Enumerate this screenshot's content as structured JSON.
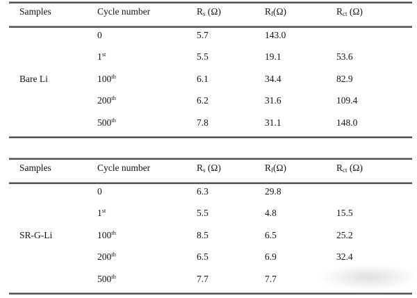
{
  "colors": {
    "background": "#ffffff",
    "rule": "#555555",
    "text": "#131313",
    "watermark": "#c8c8c8"
  },
  "tables": [
    {
      "sample": "Bare Li",
      "header": {
        "samples": "Samples",
        "cycle": "Cycle number",
        "rs": {
          "pre": "R",
          "sub": "s",
          "post": " (Ω)"
        },
        "rf": {
          "pre": "R",
          "sub": "f",
          "post": "(Ω)"
        },
        "rct": {
          "pre": "R",
          "sub": "ct",
          "post": " (Ω)"
        }
      },
      "rows": [
        {
          "cycle": {
            "base": "0",
            "sup": ""
          },
          "rs": "5.7",
          "rf": "143.0",
          "rct": ""
        },
        {
          "cycle": {
            "base": "1",
            "sup": "st"
          },
          "rs": "5.5",
          "rf": "19.1",
          "rct": "53.6"
        },
        {
          "cycle": {
            "base": "100",
            "sup": "th"
          },
          "rs": "6.1",
          "rf": "34.4",
          "rct": "82.9"
        },
        {
          "cycle": {
            "base": "200",
            "sup": "th"
          },
          "rs": "6.2",
          "rf": "31.6",
          "rct": "109.4"
        },
        {
          "cycle": {
            "base": "500",
            "sup": "th"
          },
          "rs": "7.8",
          "rf": "31.1",
          "rct": "148.0"
        }
      ]
    },
    {
      "sample": "SR-G-Li",
      "header": {
        "samples": "Samples",
        "cycle": "Cycle number",
        "rs": {
          "pre": "R",
          "sub": "s",
          "post": " (Ω)"
        },
        "rf": {
          "pre": "R",
          "sub": "f",
          "post": "(Ω)"
        },
        "rct": {
          "pre": "R",
          "sub": "ct",
          "post": " (Ω)"
        }
      },
      "rows": [
        {
          "cycle": {
            "base": "0",
            "sup": ""
          },
          "rs": "6.3",
          "rf": "29.8",
          "rct": ""
        },
        {
          "cycle": {
            "base": "1",
            "sup": "st"
          },
          "rs": "5.5",
          "rf": "4.8",
          "rct": "15.5"
        },
        {
          "cycle": {
            "base": "100",
            "sup": "th"
          },
          "rs": "8.5",
          "rf": "6.5",
          "rct": "25.2"
        },
        {
          "cycle": {
            "base": "200",
            "sup": "th"
          },
          "rs": "6.5",
          "rf": "6.9",
          "rct": "32.4"
        },
        {
          "cycle": {
            "base": "500",
            "sup": "th"
          },
          "rs": "7.7",
          "rf": "7.7",
          "rct": ""
        }
      ]
    }
  ]
}
